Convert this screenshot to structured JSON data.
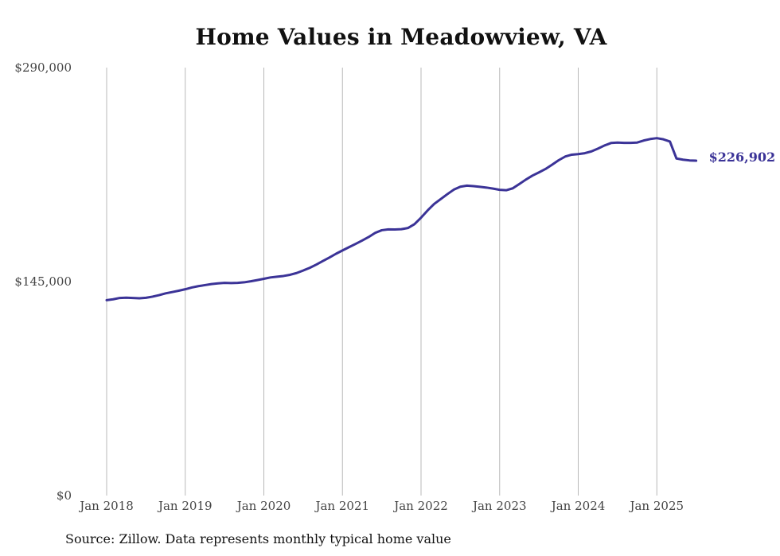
{
  "chart_data": {
    "type": "line",
    "title": "Home Values in Meadowview, VA",
    "xlabel": "",
    "ylabel": "",
    "ylim": [
      0,
      290000
    ],
    "xlim": [
      "2018-01",
      "2025-07"
    ],
    "y_ticks": [
      0,
      145000,
      290000
    ],
    "y_tick_labels": [
      "$0",
      "$145,000",
      "$290,000"
    ],
    "x_ticks": [
      "2018-01",
      "2019-01",
      "2020-01",
      "2021-01",
      "2022-01",
      "2023-01",
      "2024-01",
      "2025-01"
    ],
    "x_tick_labels": [
      "Jan 2018",
      "Jan 2019",
      "Jan 2020",
      "Jan 2021",
      "Jan 2022",
      "Jan 2023",
      "Jan 2024",
      "Jan 2025"
    ],
    "grid": "vertical",
    "end_label": "$226,902",
    "line_color": "#3b3397",
    "series": [
      {
        "x": [
          "2018-01",
          "2018-02",
          "2018-03",
          "2018-04",
          "2018-05",
          "2018-06",
          "2018-07",
          "2018-08",
          "2018-09",
          "2018-10",
          "2018-11",
          "2018-12",
          "2019-01",
          "2019-02",
          "2019-03",
          "2019-04",
          "2019-05",
          "2019-06",
          "2019-07",
          "2019-08",
          "2019-09",
          "2019-10",
          "2019-11",
          "2019-12",
          "2020-01",
          "2020-02",
          "2020-03",
          "2020-04",
          "2020-05",
          "2020-06",
          "2020-07",
          "2020-08",
          "2020-09",
          "2020-10",
          "2020-11",
          "2020-12",
          "2021-01",
          "2021-02",
          "2021-03",
          "2021-04",
          "2021-05",
          "2021-06",
          "2021-07",
          "2021-08",
          "2021-09",
          "2021-10",
          "2021-11",
          "2021-12",
          "2022-01",
          "2022-02",
          "2022-03",
          "2022-04",
          "2022-05",
          "2022-06",
          "2022-07",
          "2022-08",
          "2022-09",
          "2022-10",
          "2022-11",
          "2022-12",
          "2023-01",
          "2023-02",
          "2023-03",
          "2023-04",
          "2023-05",
          "2023-06",
          "2023-07",
          "2023-08",
          "2023-09",
          "2023-10",
          "2023-11",
          "2023-12",
          "2024-01",
          "2024-02",
          "2024-03",
          "2024-04",
          "2024-05",
          "2024-06",
          "2024-07",
          "2024-08",
          "2024-09",
          "2024-10",
          "2024-11",
          "2024-12",
          "2025-01",
          "2025-02",
          "2025-03",
          "2025-04",
          "2025-05",
          "2025-06",
          "2025-07"
        ],
        "values": [
          132400,
          133000,
          133900,
          134100,
          133900,
          133700,
          134000,
          134800,
          135800,
          137000,
          137900,
          138800,
          139800,
          141000,
          141900,
          142600,
          143300,
          143800,
          144100,
          144000,
          144100,
          144500,
          145200,
          146000,
          146900,
          147800,
          148300,
          148800,
          149600,
          150800,
          152500,
          154300,
          156500,
          158900,
          161300,
          163800,
          166100,
          168300,
          170500,
          172800,
          175200,
          178000,
          179800,
          180400,
          180300,
          180500,
          181300,
          183900,
          188300,
          193200,
          197600,
          200900,
          204200,
          207300,
          209300,
          210000,
          209700,
          209200,
          208700,
          208000,
          207200,
          206900,
          208200,
          211100,
          214100,
          216800,
          219000,
          221300,
          224200,
          227200,
          229700,
          231000,
          231400,
          232000,
          233200,
          235100,
          237200,
          238900,
          239200,
          239000,
          239000,
          239200,
          240600,
          241600,
          242200,
          241400,
          239900,
          228400,
          227600,
          227100,
          226902
        ]
      }
    ]
  },
  "source_note": "Source: Zillow. Data represents monthly typical home value"
}
